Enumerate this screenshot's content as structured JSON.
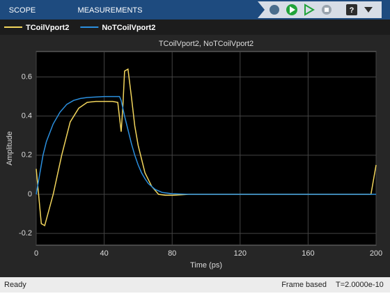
{
  "toolbar": {
    "tabs": [
      "SCOPE",
      "MEASUREMENTS"
    ]
  },
  "status": {
    "left": "Ready",
    "mode": "Frame based",
    "time": "T=2.0000e-10"
  },
  "chart_data": {
    "type": "line",
    "title": "TCoilVport2, NoTCoilVport2",
    "xlabel": "Time (ps)",
    "ylabel": "Amplitude",
    "xlim": [
      0,
      200
    ],
    "ylim": [
      -0.26,
      0.73
    ],
    "xticks": [
      0,
      40,
      80,
      120,
      160,
      200
    ],
    "yticks": [
      -0.2,
      0,
      0.2,
      0.4,
      0.6
    ],
    "grid": true,
    "legend": "top",
    "series": [
      {
        "name": "TCoilVport2",
        "color": "#f2d55c",
        "x": [
          0,
          3,
          5,
          10,
          15,
          20,
          25,
          30,
          35,
          40,
          45,
          48,
          50,
          51,
          52,
          54,
          56,
          58,
          60,
          64,
          68,
          72,
          76,
          80,
          90,
          120,
          160,
          196,
          197,
          200
        ],
        "values": [
          0.13,
          -0.15,
          -0.16,
          0.0,
          0.2,
          0.37,
          0.44,
          0.47,
          0.475,
          0.475,
          0.475,
          0.47,
          0.32,
          0.45,
          0.63,
          0.64,
          0.5,
          0.35,
          0.25,
          0.11,
          0.04,
          0.0,
          -0.005,
          -0.005,
          0,
          0,
          0,
          0,
          0,
          0.15
        ]
      },
      {
        "name": "NoTCoilVport2",
        "color": "#2b8fde",
        "x": [
          0,
          2,
          4,
          6,
          10,
          14,
          18,
          22,
          26,
          30,
          40,
          49,
          50,
          52,
          54,
          56,
          58,
          60,
          62,
          64,
          66,
          68,
          70,
          74,
          80,
          90,
          200
        ],
        "values": [
          0,
          0.1,
          0.2,
          0.27,
          0.36,
          0.42,
          0.46,
          0.48,
          0.49,
          0.495,
          0.5,
          0.5,
          0.48,
          0.4,
          0.33,
          0.26,
          0.2,
          0.15,
          0.11,
          0.08,
          0.055,
          0.04,
          0.025,
          0.01,
          0.003,
          0,
          0
        ]
      }
    ]
  }
}
